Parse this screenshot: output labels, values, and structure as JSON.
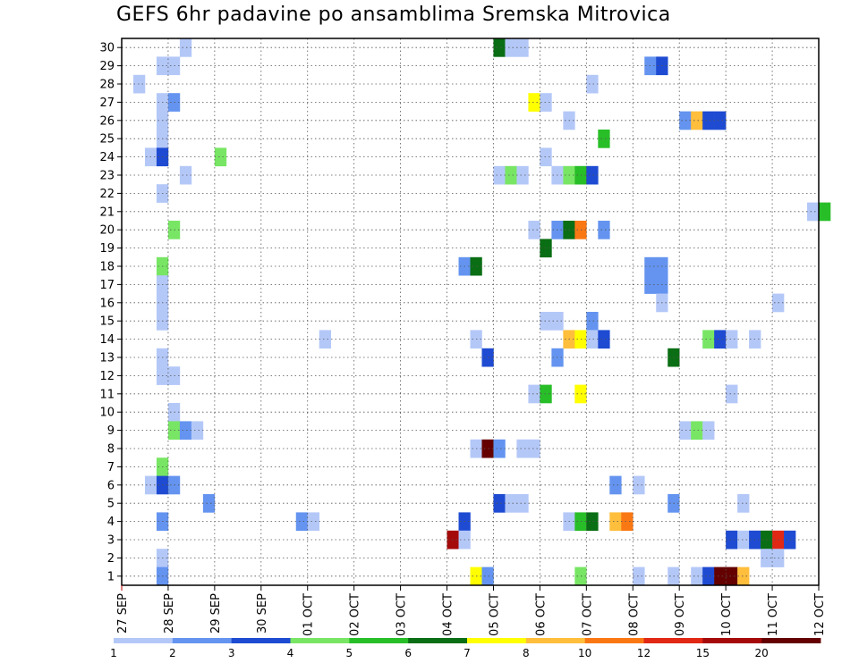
{
  "title": "GEFS 6hr padavine po ansamblima Sremska Mitrovica",
  "chart_data": {
    "type": "heatmap",
    "title": "GEFS 6hr padavine po ansamblima Sremska Mitrovica",
    "x_tick_labels": [
      "27 SEP",
      "28 SEP",
      "29 SEP",
      "30 SEP",
      "01 OCT",
      "02 OCT",
      "03 OCT",
      "04 OCT",
      "05 OCT",
      "06 OCT",
      "07 OCT",
      "08 OCT",
      "09 OCT",
      "10 OCT",
      "11 OCT",
      "12 OCT"
    ],
    "x_range_days": [
      0,
      15
    ],
    "y_tick_labels": [
      1,
      2,
      3,
      4,
      5,
      6,
      7,
      8,
      9,
      10,
      11,
      12,
      13,
      14,
      15,
      16,
      17,
      18,
      19,
      20,
      21,
      22,
      23,
      24,
      25,
      26,
      27,
      28,
      29,
      30
    ],
    "y_range": [
      0.5,
      30.5
    ],
    "time_step_hours": 6,
    "grid": true,
    "legend": {
      "position": "bottom",
      "labels": [
        "1",
        "2",
        "3",
        "4",
        "5",
        "6",
        "7",
        "8",
        "10",
        "12",
        "15",
        "20"
      ],
      "colors": [
        "#b4c8f8",
        "#6494f0",
        "#1e4bd2",
        "#78e664",
        "#28be28",
        "#0a6e14",
        "#ffff00",
        "#ffbe3c",
        "#fa7814",
        "#e12814",
        "#a50a0a",
        "#640000"
      ]
    },
    "colors": [
      "#b4c8f8",
      "#6494f0",
      "#1e4bd2",
      "#78e664",
      "#28be28",
      "#0a6e14",
      "#ffff00",
      "#ffbe3c",
      "#fa7814",
      "#e12814",
      "#a50a0a",
      "#640000"
    ],
    "cells_note": "each cell: [day_index from 27 SEP 00Z, member (1-30), color class 0-11]; class k corresponds to precipitation between legend value k and k+1",
    "cells": [
      [
        1.25,
        30,
        0
      ],
      [
        0.75,
        29,
        0
      ],
      [
        1.0,
        29,
        0
      ],
      [
        0.25,
        28,
        0
      ],
      [
        0.75,
        27,
        0
      ],
      [
        1.0,
        27,
        1
      ],
      [
        0.75,
        26,
        0
      ],
      [
        0.75,
        25,
        0
      ],
      [
        0.5,
        24,
        0
      ],
      [
        0.75,
        24,
        2
      ],
      [
        2.0,
        24,
        3
      ],
      [
        1.25,
        23,
        0
      ],
      [
        0.75,
        22,
        0
      ],
      [
        1.0,
        20,
        3
      ],
      [
        0.75,
        18,
        3
      ],
      [
        0.75,
        17,
        0
      ],
      [
        0.75,
        16,
        0
      ],
      [
        0.75,
        15,
        0
      ],
      [
        0.75,
        13,
        0
      ],
      [
        0.75,
        12,
        0
      ],
      [
        1.0,
        12,
        0
      ],
      [
        1.0,
        10,
        0
      ],
      [
        1.0,
        9,
        3
      ],
      [
        1.25,
        9,
        1
      ],
      [
        1.5,
        9,
        0
      ],
      [
        0.75,
        7,
        3
      ],
      [
        0.5,
        6,
        0
      ],
      [
        0.75,
        6,
        2
      ],
      [
        1.0,
        6,
        1
      ],
      [
        1.75,
        5,
        1
      ],
      [
        0.75,
        4,
        1
      ],
      [
        0.75,
        2,
        0
      ],
      [
        0.75,
        1,
        1
      ],
      [
        3.75,
        4,
        1
      ],
      [
        4.0,
        4,
        0
      ],
      [
        4.25,
        14,
        0
      ],
      [
        8.0,
        30,
        5
      ],
      [
        8.25,
        30,
        0
      ],
      [
        8.5,
        30,
        0
      ],
      [
        8.75,
        27,
        6
      ],
      [
        9.0,
        27,
        0
      ],
      [
        9.5,
        26,
        0
      ],
      [
        9.0,
        24,
        0
      ],
      [
        8.0,
        23,
        0
      ],
      [
        8.25,
        23,
        3
      ],
      [
        8.5,
        23,
        0
      ],
      [
        9.25,
        23,
        0
      ],
      [
        9.5,
        23,
        3
      ],
      [
        9.75,
        23,
        4
      ],
      [
        10.0,
        23,
        2
      ],
      [
        8.75,
        20,
        0
      ],
      [
        9.25,
        20,
        1
      ],
      [
        9.5,
        20,
        5
      ],
      [
        9.75,
        20,
        8
      ],
      [
        10.25,
        20,
        1
      ],
      [
        9.0,
        19,
        5
      ],
      [
        7.25,
        18,
        1
      ],
      [
        7.5,
        18,
        5
      ],
      [
        9.0,
        15,
        0
      ],
      [
        9.25,
        15,
        0
      ],
      [
        10.0,
        15,
        1
      ],
      [
        7.5,
        14,
        0
      ],
      [
        9.5,
        14,
        7
      ],
      [
        9.75,
        14,
        6
      ],
      [
        10.0,
        14,
        0
      ],
      [
        10.25,
        14,
        2
      ],
      [
        7.75,
        13,
        2
      ],
      [
        9.25,
        13,
        1
      ],
      [
        8.75,
        11,
        0
      ],
      [
        9.0,
        11,
        4
      ],
      [
        9.75,
        11,
        6
      ],
      [
        7.5,
        8,
        0
      ],
      [
        7.75,
        8,
        11
      ],
      [
        8.0,
        8,
        1
      ],
      [
        8.5,
        8,
        0
      ],
      [
        8.75,
        8,
        0
      ],
      [
        8.0,
        5,
        2
      ],
      [
        8.25,
        5,
        0
      ],
      [
        8.5,
        5,
        0
      ],
      [
        7.25,
        4,
        2
      ],
      [
        9.5,
        4,
        0
      ],
      [
        9.75,
        4,
        4
      ],
      [
        10.0,
        4,
        5
      ],
      [
        7.0,
        3,
        10
      ],
      [
        7.25,
        3,
        0
      ],
      [
        7.5,
        1,
        6
      ],
      [
        7.75,
        1,
        1
      ],
      [
        9.75,
        1,
        3
      ],
      [
        10.25,
        25,
        4
      ],
      [
        10.0,
        28,
        0
      ],
      [
        10.5,
        6,
        1
      ],
      [
        11.0,
        6,
        0
      ],
      [
        10.5,
        4,
        7
      ],
      [
        10.75,
        4,
        8
      ],
      [
        11.0,
        1,
        0
      ],
      [
        11.25,
        29,
        1
      ],
      [
        11.5,
        29,
        2
      ],
      [
        11.25,
        18,
        1
      ],
      [
        11.5,
        18,
        1
      ],
      [
        11.25,
        17,
        1
      ],
      [
        11.5,
        17,
        1
      ],
      [
        11.5,
        16,
        0
      ],
      [
        11.75,
        13,
        5
      ],
      [
        11.75,
        5,
        1
      ],
      [
        11.75,
        1,
        0
      ],
      [
        12.0,
        26,
        1
      ],
      [
        12.25,
        26,
        7
      ],
      [
        12.5,
        26,
        2
      ],
      [
        12.75,
        26,
        2
      ],
      [
        12.0,
        9,
        0
      ],
      [
        12.25,
        9,
        3
      ],
      [
        12.5,
        9,
        0
      ],
      [
        12.5,
        14,
        3
      ],
      [
        12.75,
        14,
        2
      ],
      [
        13.0,
        14,
        0
      ],
      [
        13.5,
        14,
        0
      ],
      [
        13.0,
        11,
        0
      ],
      [
        13.25,
        5,
        0
      ],
      [
        13.0,
        3,
        2
      ],
      [
        13.25,
        3,
        0
      ],
      [
        13.5,
        3,
        2
      ],
      [
        13.75,
        3,
        5
      ],
      [
        14.0,
        3,
        9
      ],
      [
        14.25,
        3,
        2
      ],
      [
        13.75,
        2,
        0
      ],
      [
        14.0,
        2,
        0
      ],
      [
        12.25,
        1,
        0
      ],
      [
        12.5,
        1,
        2
      ],
      [
        12.75,
        1,
        11
      ],
      [
        13.0,
        1,
        11
      ],
      [
        13.25,
        1,
        7
      ],
      [
        14.0,
        16,
        0
      ],
      [
        14.75,
        21,
        0
      ],
      [
        15.0,
        21,
        4
      ]
    ]
  }
}
